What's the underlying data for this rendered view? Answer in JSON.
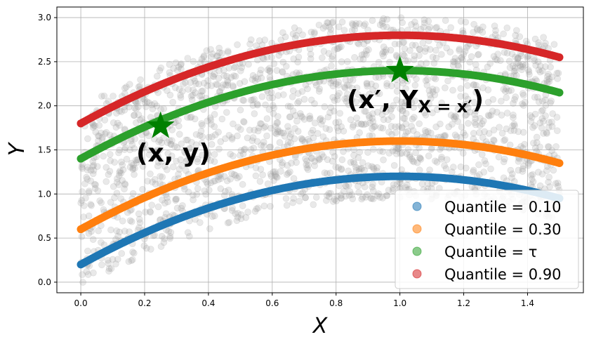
{
  "chart_data": {
    "type": "scatter",
    "xlabel": "X",
    "ylabel": "Y",
    "xlim": [
      -0.075,
      1.575
    ],
    "ylim": [
      -0.12,
      3.12
    ],
    "xticks": [
      "0.0",
      "0.2",
      "0.4",
      "0.6",
      "0.8",
      "1.0",
      "1.2",
      "1.4"
    ],
    "yticks": [
      "0.0",
      "0.5",
      "1.0",
      "1.5",
      "2.0",
      "2.5",
      "3.0"
    ],
    "grid": true,
    "legend_position": "lower-right",
    "background_points": {
      "color": "#999999",
      "x_range": [
        0.0,
        1.5
      ],
      "lower_curve": "0.2 + 2*x - x^2 - 0.25",
      "upper_curve": "1.8 + 2*x - x^2 + 0.2",
      "approx_count": 2000
    },
    "series": [
      {
        "name": "Quantile = 0.10",
        "color": "#1f77b4",
        "x": [
          0.0,
          0.25,
          0.5,
          0.75,
          1.0,
          1.25,
          1.5
        ],
        "values": [
          0.2,
          0.6375,
          0.95,
          1.1375,
          1.2,
          1.1375,
          0.95
        ]
      },
      {
        "name": "Quantile = 0.30",
        "color": "#ff7f0e",
        "x": [
          0.0,
          0.25,
          0.5,
          0.75,
          1.0,
          1.25,
          1.5
        ],
        "values": [
          0.6,
          1.0375,
          1.35,
          1.5375,
          1.6,
          1.5375,
          1.35
        ]
      },
      {
        "name": "Quantile = τ",
        "color": "#2ca02c",
        "x": [
          0.0,
          0.25,
          0.5,
          0.75,
          1.0,
          1.25,
          1.5
        ],
        "values": [
          1.4,
          1.8375,
          2.15,
          2.3375,
          2.4,
          2.3375,
          2.15
        ]
      },
      {
        "name": "Quantile = 0.90",
        "color": "#d62728",
        "x": [
          0.0,
          0.25,
          0.5,
          0.75,
          1.0,
          1.25,
          1.5
        ],
        "values": [
          1.8,
          2.2375,
          2.55,
          2.7375,
          2.8,
          2.7375,
          2.55
        ]
      }
    ],
    "markers": [
      {
        "x": 0.25,
        "y": 1.77,
        "color": "#008000",
        "label": "(x, y)"
      },
      {
        "x": 1.0,
        "y": 2.4,
        "color": "#008000",
        "label": "(x′, Y",
        "label_sub": "X = x′",
        "label_tail": ")"
      }
    ]
  }
}
